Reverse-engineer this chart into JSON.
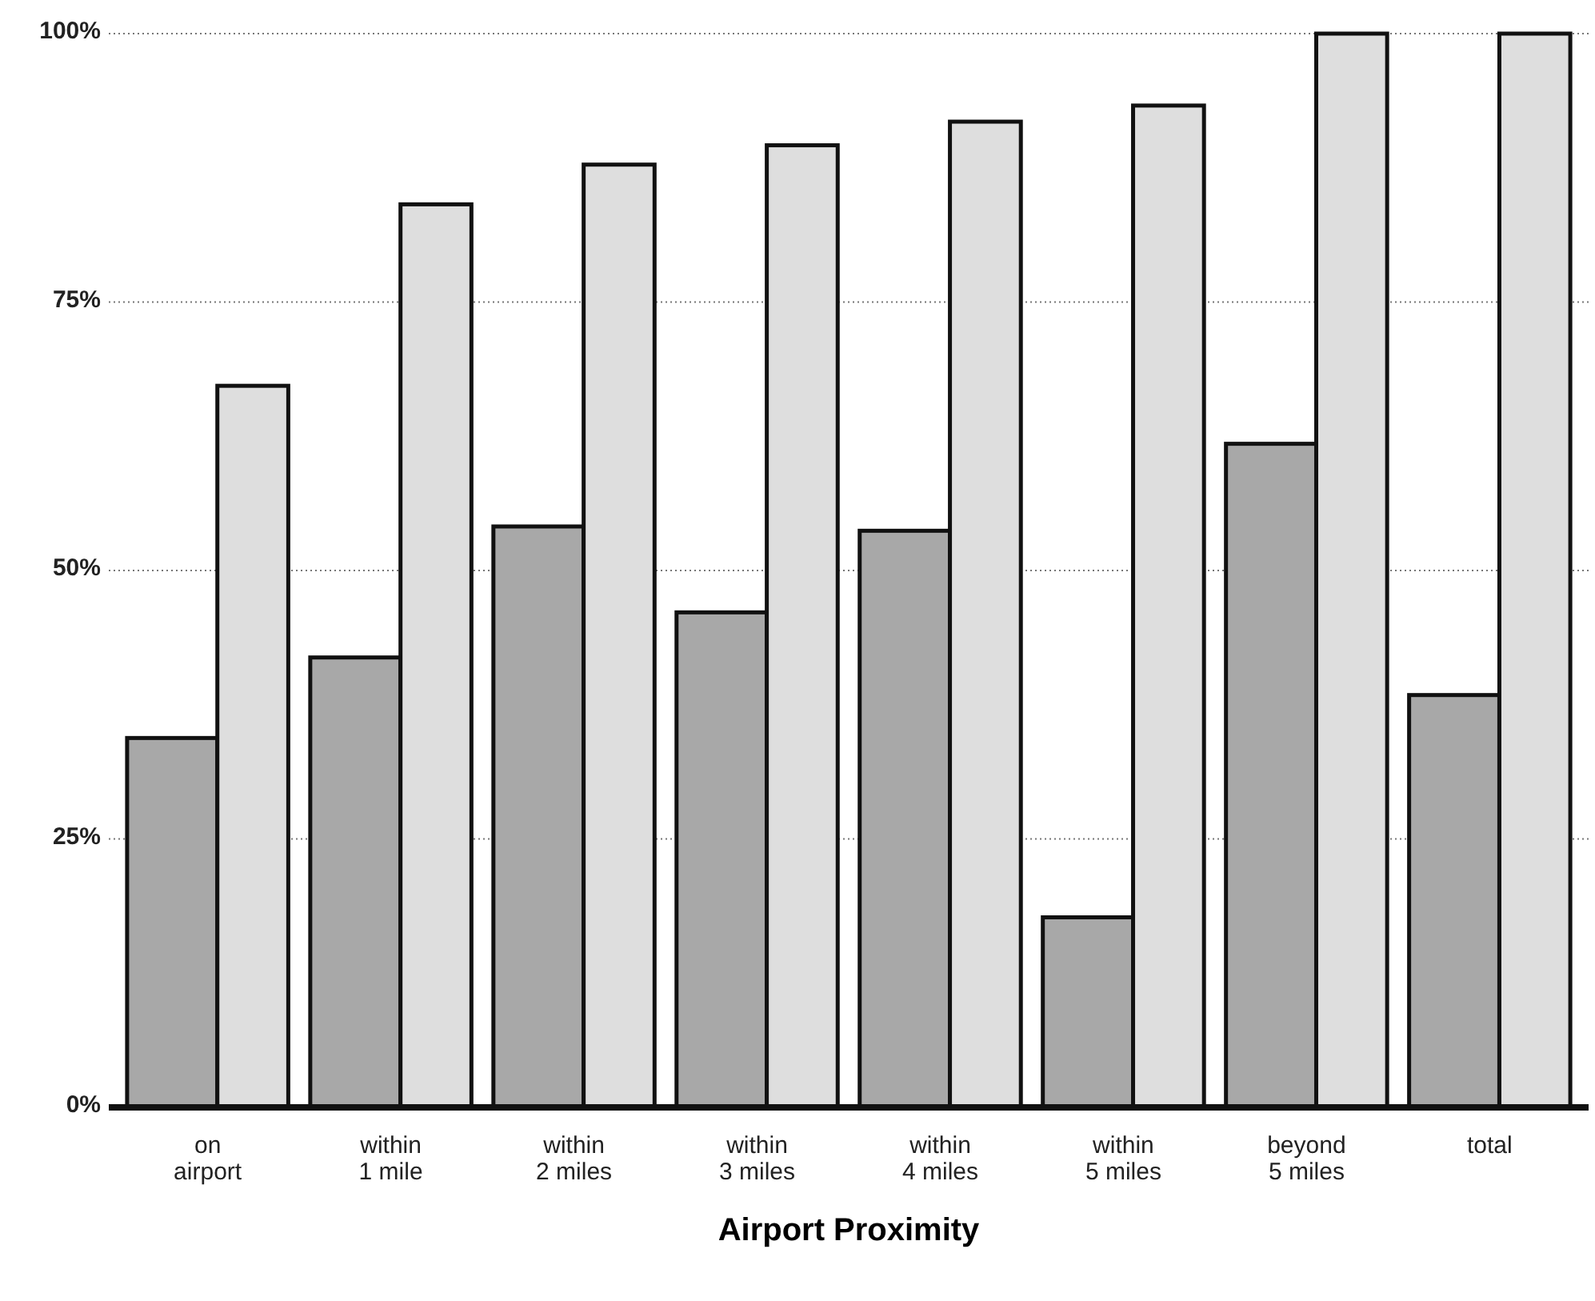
{
  "chart_data": {
    "type": "bar",
    "xlabel": "Airport Proximity",
    "categories": [
      "on\nairport",
      "within\n1 mile",
      "within\n2 miles",
      "within\n3 miles",
      "within\n4 miles",
      "within\n5 miles",
      "beyond\n5 miles",
      "total"
    ],
    "series": [
      {
        "color": "#a8a8a8",
        "values": [
          34.4,
          41.9,
          54.1,
          46.1,
          53.7,
          17.7,
          61.8,
          38.4
        ]
      },
      {
        "color": "#dedede",
        "values": [
          67.2,
          84.1,
          87.8,
          89.6,
          91.8,
          93.3,
          100,
          100
        ]
      }
    ],
    "ylim": [
      0,
      100
    ],
    "yticks": [
      {
        "value": 0,
        "label": "0%"
      },
      {
        "value": 25,
        "label": "25%"
      },
      {
        "value": 50,
        "label": "50%"
      },
      {
        "value": 75,
        "label": "75%"
      },
      {
        "value": 100,
        "label": "100%"
      }
    ],
    "grid": "y"
  }
}
